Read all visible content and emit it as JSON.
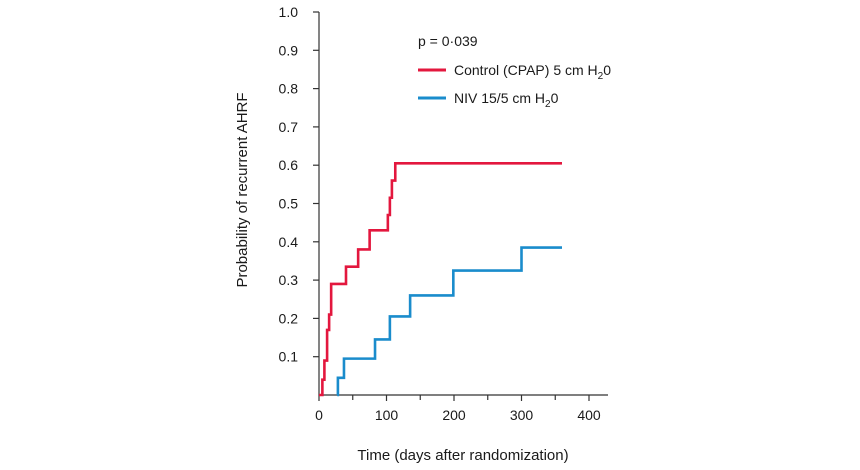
{
  "chart_data": {
    "type": "line",
    "subtype": "step",
    "title": "",
    "xlabel": "Time (days after randomization)",
    "ylabel": "Probability of recurrent AHRF",
    "xlim": [
      0,
      400
    ],
    "ylim": [
      0,
      1.0
    ],
    "x_ticks": [
      0,
      100,
      200,
      300,
      400
    ],
    "y_ticks": [
      0.1,
      0.2,
      0.3,
      0.4,
      0.5,
      0.6,
      0.7,
      0.8,
      0.9,
      1.0
    ],
    "y_tick_labels": [
      "0.1",
      "0.2",
      "0.3",
      "0.4",
      "0.5",
      "0.6",
      "0.7",
      "0.8",
      "0.9",
      "1.0"
    ],
    "grid": false,
    "legend_position": "top-center",
    "annotation": "p = 0·039",
    "series": [
      {
        "name": "Control (CPAP) 5 cm H20",
        "label_main": "Control (CPAP) 5 cm H",
        "label_sub": "2",
        "label_tail": "0",
        "color": "#e3173e",
        "points": [
          [
            0,
            0.0
          ],
          [
            5,
            0.04
          ],
          [
            8,
            0.09
          ],
          [
            12,
            0.17
          ],
          [
            15,
            0.21
          ],
          [
            18,
            0.29
          ],
          [
            40,
            0.335
          ],
          [
            58,
            0.38
          ],
          [
            75,
            0.43
          ],
          [
            102,
            0.47
          ],
          [
            105,
            0.515
          ],
          [
            108,
            0.56
          ],
          [
            113,
            0.605
          ],
          [
            360,
            0.605
          ]
        ]
      },
      {
        "name": "NIV 15/5 cm H20",
        "label_main": "NIV 15/5 cm H",
        "label_sub": "2",
        "label_tail": "0",
        "color": "#1a8ccc",
        "points": [
          [
            27,
            0.0
          ],
          [
            28,
            0.045
          ],
          [
            37,
            0.095
          ],
          [
            83,
            0.145
          ],
          [
            105,
            0.205
          ],
          [
            135,
            0.26
          ],
          [
            199,
            0.325
          ],
          [
            300,
            0.385
          ],
          [
            360,
            0.385
          ]
        ]
      }
    ]
  }
}
